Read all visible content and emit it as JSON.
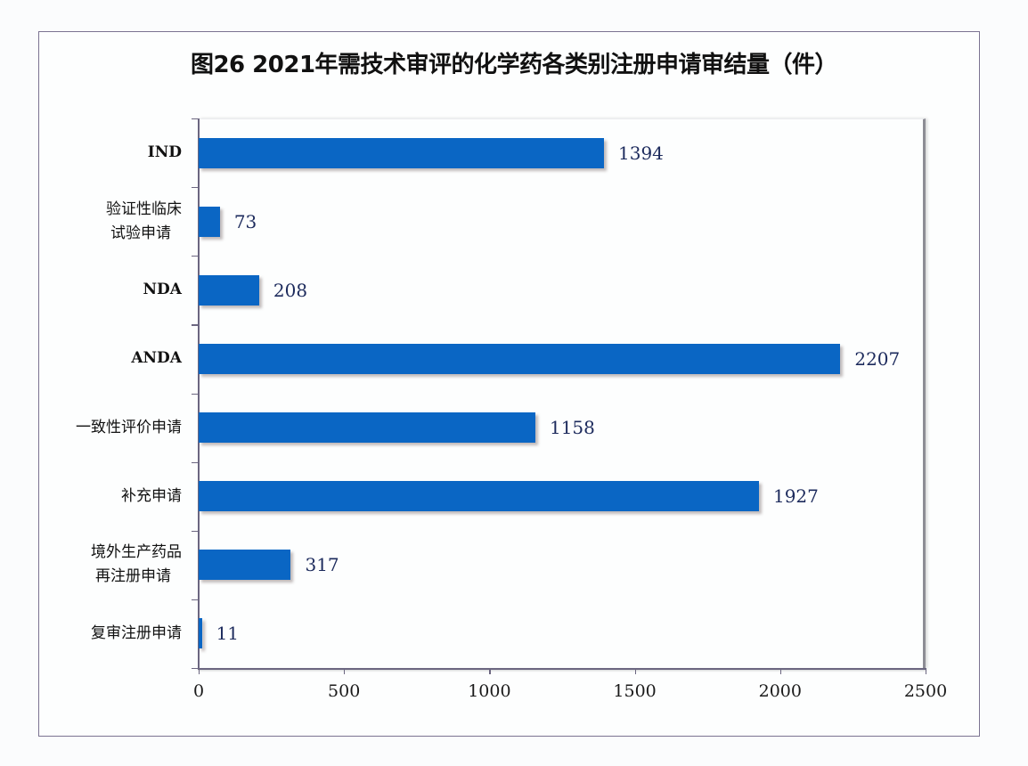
{
  "chart_data": {
    "type": "bar",
    "orientation": "horizontal",
    "title": "图26 2021年需技术审评的化学药各类别注册申请审结量（件）",
    "categories": [
      "IND",
      "验证性临床试验申请",
      "NDA",
      "ANDA",
      "一致性评价申请",
      "补充申请",
      "境外生产药品再注册申请",
      "复审注册申请"
    ],
    "category_lines": [
      [
        "IND"
      ],
      [
        "验证性临床",
        "试验申请"
      ],
      [
        "NDA"
      ],
      [
        "ANDA"
      ],
      [
        "一致性评价申请"
      ],
      [
        "补充申请"
      ],
      [
        "境外生产药品",
        "再注册申请"
      ],
      [
        "复审注册申请"
      ]
    ],
    "values": [
      1394,
      73,
      208,
      2207,
      1158,
      1927,
      317,
      11
    ],
    "value_labels": [
      "1394",
      "73",
      "208",
      "2207",
      "1158",
      "1927",
      "317",
      "11"
    ],
    "xlabel": "",
    "ylabel": "",
    "xlim": [
      0,
      2500
    ],
    "xticks": [
      "0",
      "500",
      "1000",
      "1500",
      "2000",
      "2500"
    ],
    "grid": false,
    "legend": null,
    "bar_color": "#0a66c4"
  }
}
